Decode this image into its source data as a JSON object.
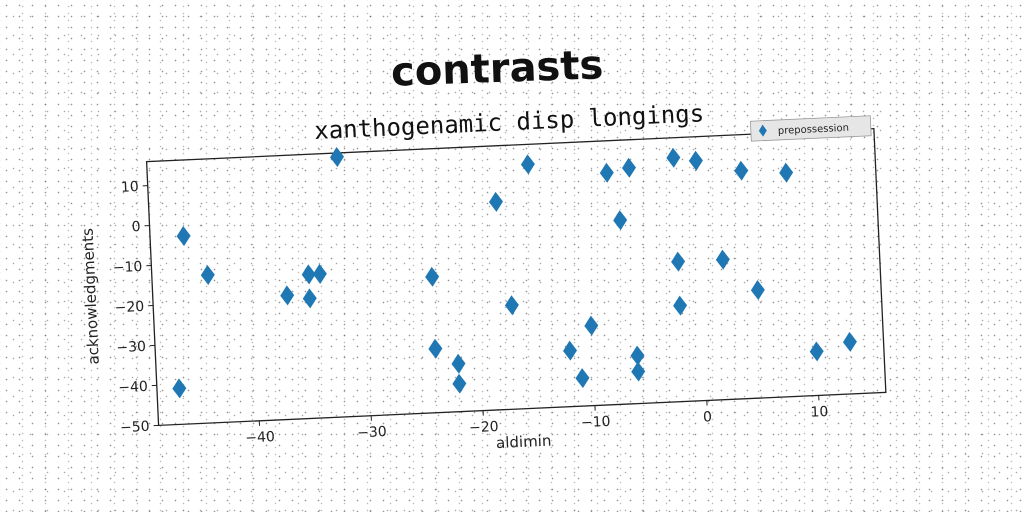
{
  "title": "contrasts",
  "chart_data": {
    "type": "scatter",
    "title": "xanthogenamic disp longings",
    "xlabel": "aldimin",
    "ylabel": "acknowledgments",
    "xlim": [
      -49,
      16
    ],
    "ylim": [
      -50,
      16
    ],
    "xticks": [
      -40,
      -30,
      -20,
      -10,
      0,
      10
    ],
    "yticks": [
      10,
      0,
      -10,
      -20,
      -30,
      -40,
      -50
    ],
    "legend": {
      "placement": "top-right"
    },
    "grid": false,
    "series": [
      {
        "name": "prepossession",
        "color": "#1f77b4",
        "marker": "diamond",
        "x": [
          -32,
          -15,
          -6,
          -8,
          -2,
          0,
          4,
          8,
          -18,
          -7,
          -46,
          -44,
          -35,
          -34,
          -37,
          -35,
          -24,
          -2,
          2,
          -17,
          -2,
          5,
          -24,
          -10,
          -22,
          -12,
          -6,
          -22,
          -11,
          -6,
          -47,
          10,
          13
        ],
        "y": [
          15,
          11,
          9,
          8,
          11,
          10,
          7,
          6,
          2,
          -4,
          -3,
          -13,
          -14,
          -14,
          -19,
          -20,
          -16,
          -15,
          -15,
          -24,
          -26,
          -23,
          -34,
          -30,
          -38,
          -36,
          -38,
          -43,
          -43,
          -42,
          -41,
          -39,
          -37
        ]
      }
    ]
  }
}
